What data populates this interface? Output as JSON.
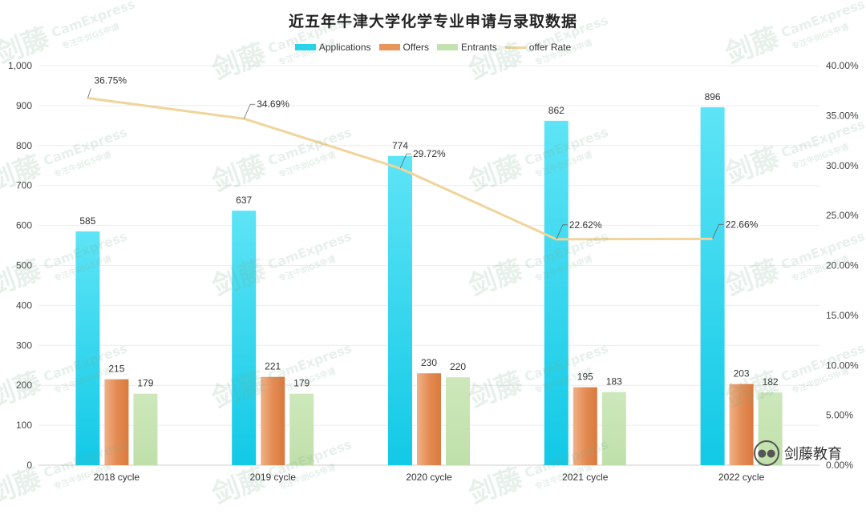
{
  "chart_data": {
    "type": "bar",
    "title": "近五年牛津大学化学专业申请与录取数据",
    "categories": [
      "2018 cycle",
      "2019 cycle",
      "2020 cycle",
      "2021 cycle",
      "2022 cycle"
    ],
    "series": [
      {
        "name": "Applications",
        "values": [
          585,
          637,
          774,
          862,
          896
        ],
        "color": "#2ad3ec"
      },
      {
        "name": "Offers",
        "values": [
          215,
          221,
          230,
          195,
          203
        ],
        "color": "#e8955c"
      },
      {
        "name": "Entrants",
        "values": [
          179,
          179,
          220,
          183,
          182
        ],
        "color": "#c3e2b0"
      }
    ],
    "line_series": {
      "name": "offer Rate",
      "values": [
        36.75,
        34.69,
        29.72,
        22.62,
        22.66
      ],
      "labels": [
        "36.75%",
        "34.69%",
        "29.72%",
        "22.62%",
        "22.66%"
      ],
      "color": "#f0d49a",
      "axis": "right"
    },
    "y_left": {
      "ylim": [
        0,
        1000
      ],
      "ticks": [
        "0",
        "100",
        "200",
        "300",
        "400",
        "500",
        "600",
        "700",
        "800",
        "900",
        "1,000"
      ]
    },
    "y_right": {
      "ylim": [
        0,
        40
      ],
      "ticks": [
        "0.00%",
        "5.00%",
        "10.00%",
        "15.00%",
        "20.00%",
        "25.00%",
        "30.00%",
        "35.00%",
        "40.00%"
      ]
    },
    "grid": true,
    "legend_position": "top-center"
  },
  "watermark": {
    "brand_cn": "剑藤",
    "brand_en": "CamExpress",
    "slogan": "专注牛剑G5申请"
  },
  "brand": {
    "label": "剑藤教育",
    "icon": "wechat-icon"
  }
}
